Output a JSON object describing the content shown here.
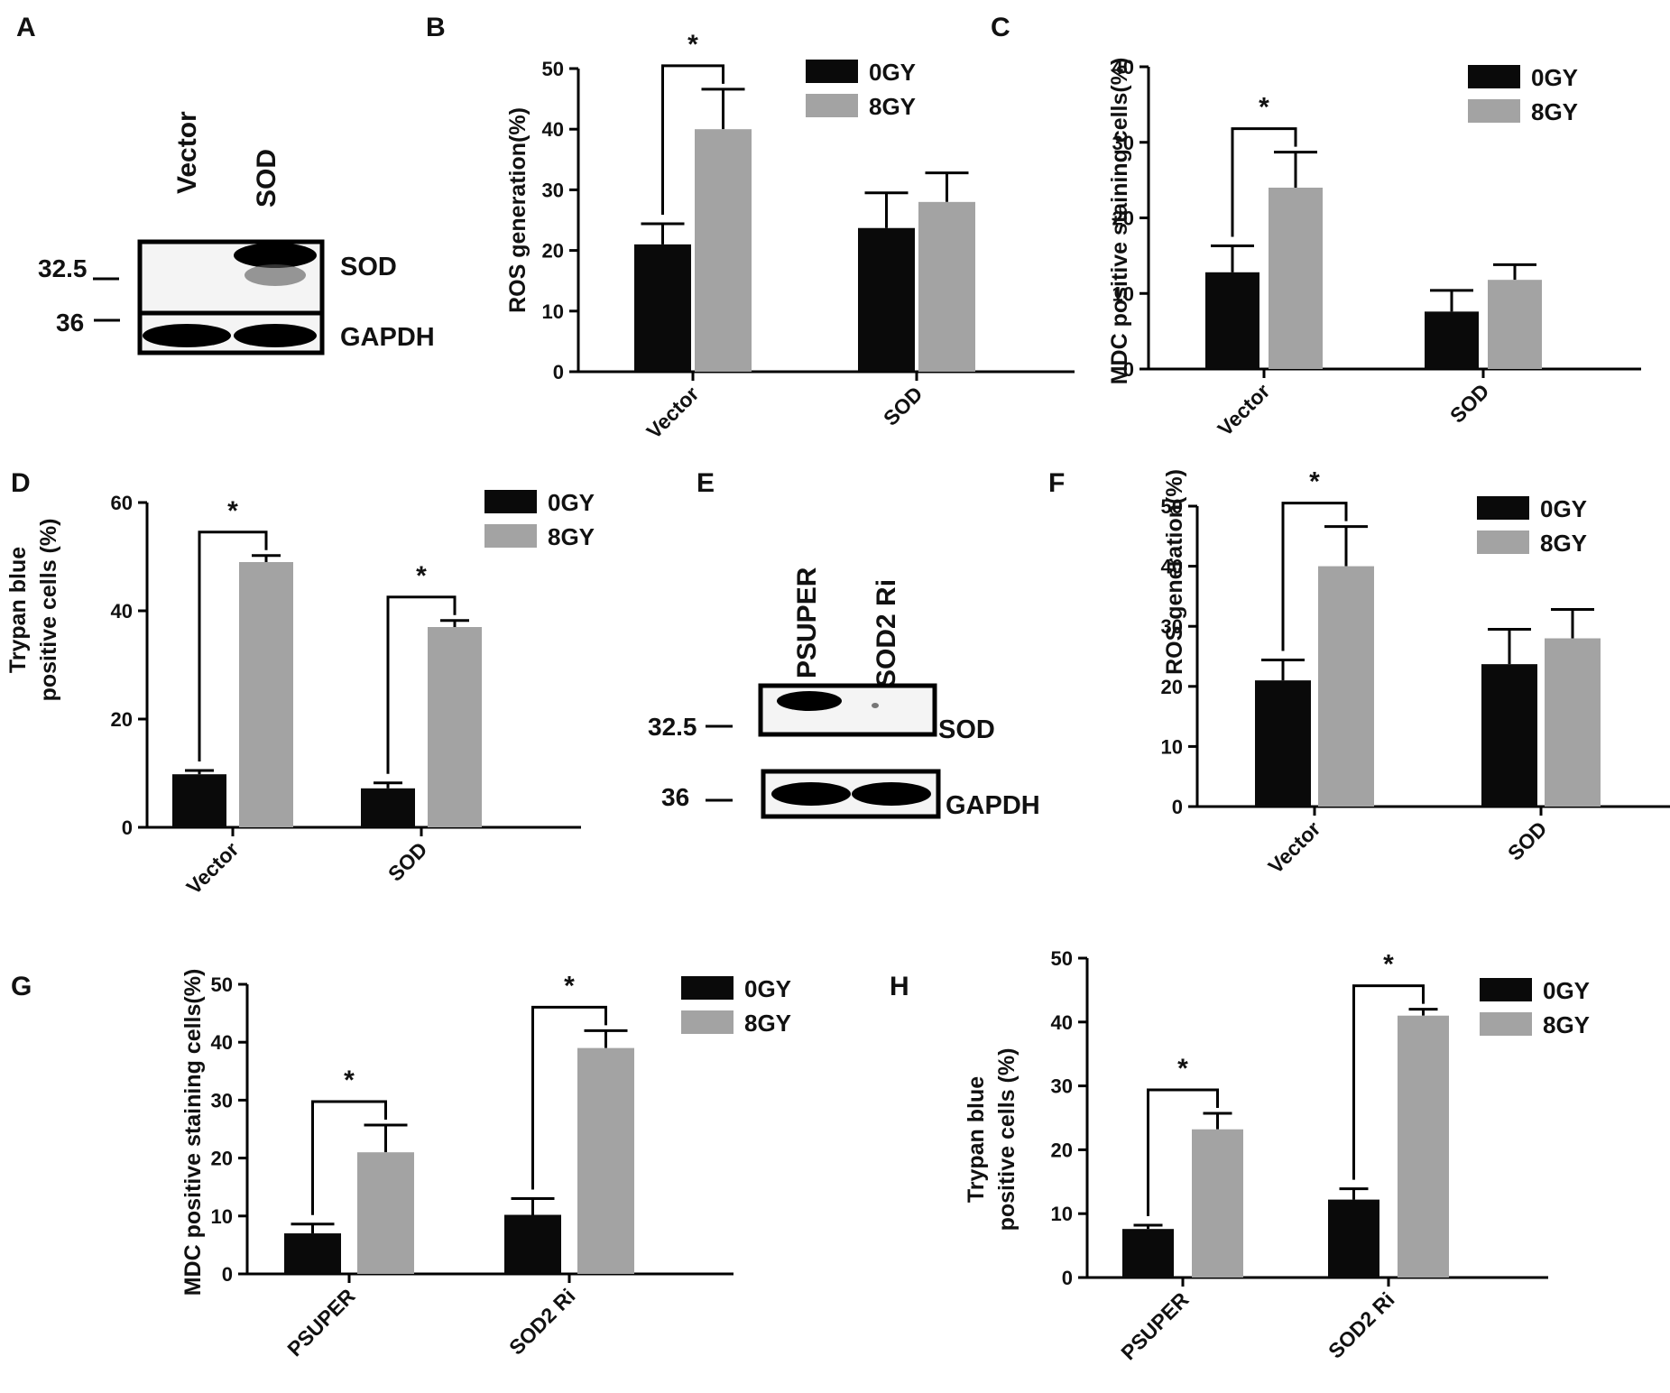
{
  "panel_labels": [
    "A",
    "B",
    "C",
    "D",
    "E",
    "F",
    "G",
    "H"
  ],
  "blots": [
    {
      "panel": "A",
      "lanes": [
        "Vector",
        "SOD"
      ],
      "rows": [
        {
          "marker": "32.5",
          "protein": "SOD"
        },
        {
          "marker": "36",
          "protein": "GAPDH"
        }
      ]
    },
    {
      "panel": "E",
      "lanes": [
        "PSUPER",
        "SOD2 Ri"
      ],
      "rows": [
        {
          "marker": "32.5",
          "protein": "SOD"
        },
        {
          "marker": "36",
          "protein": "GAPDH"
        }
      ]
    }
  ],
  "colors": {
    "0GY": "#0a0a0a",
    "8GY": "#a3a3a3"
  },
  "chart_data": [
    {
      "panel": "B",
      "type": "bar",
      "title": "",
      "ylabel": "ROS generation(%)",
      "ylim": [
        0,
        50
      ],
      "yticks": [
        0,
        10,
        20,
        30,
        40,
        50
      ],
      "categories": [
        "Vector",
        "SOD"
      ],
      "series": [
        {
          "name": "0GY",
          "values": [
            21,
            23.7
          ],
          "errors": [
            3.4,
            5.8
          ]
        },
        {
          "name": "8GY",
          "values": [
            40,
            28
          ],
          "errors": [
            6.6,
            4.8
          ]
        }
      ],
      "significance": [
        {
          "group": "Vector",
          "label": "*"
        }
      ],
      "legend": "top-right"
    },
    {
      "panel": "C",
      "type": "bar",
      "title": "",
      "ylabel": "MDC positive staining cells(%)",
      "ylim": [
        0,
        40
      ],
      "yticks": [
        0,
        10,
        20,
        30,
        40
      ],
      "categories": [
        "Vector",
        "SOD"
      ],
      "series": [
        {
          "name": "0GY",
          "values": [
            12.8,
            7.6
          ],
          "errors": [
            3.5,
            2.8
          ]
        },
        {
          "name": "8GY",
          "values": [
            24,
            11.8
          ],
          "errors": [
            4.7,
            2
          ]
        }
      ],
      "significance": [
        {
          "group": "Vector",
          "label": "*"
        }
      ],
      "legend": "top-right"
    },
    {
      "panel": "D",
      "type": "bar",
      "title": "",
      "ylabel": [
        "Trypan blue",
        "positive cells (%)"
      ],
      "ylim": [
        0,
        60
      ],
      "yticks": [
        0,
        20,
        40,
        60
      ],
      "categories": [
        "Vector",
        "SOD"
      ],
      "series": [
        {
          "name": "0GY",
          "values": [
            9.8,
            7.2
          ],
          "errors": [
            0.7,
            1
          ]
        },
        {
          "name": "8GY",
          "values": [
            49,
            37
          ],
          "errors": [
            1.2,
            1.2
          ]
        }
      ],
      "significance": [
        {
          "group": "Vector",
          "label": "*"
        },
        {
          "group": "SOD",
          "label": "*"
        }
      ],
      "legend": "top-right"
    },
    {
      "panel": "F",
      "type": "bar",
      "title": "",
      "ylabel": "ROS generation(%)",
      "ylim": [
        0,
        50
      ],
      "yticks": [
        0,
        10,
        20,
        30,
        40,
        50
      ],
      "categories": [
        "Vector",
        "SOD"
      ],
      "series": [
        {
          "name": "0GY",
          "values": [
            21,
            23.7
          ],
          "errors": [
            3.4,
            5.8
          ]
        },
        {
          "name": "8GY",
          "values": [
            40,
            28
          ],
          "errors": [
            6.6,
            4.8
          ]
        }
      ],
      "significance": [
        {
          "group": "Vector",
          "label": "*"
        }
      ],
      "legend": "top-right"
    },
    {
      "panel": "G",
      "type": "bar",
      "title": "",
      "ylabel": "MDC positive staining cells(%)",
      "ylim": [
        0,
        50
      ],
      "yticks": [
        0,
        10,
        20,
        30,
        40,
        50
      ],
      "categories": [
        "PSUPER",
        "SOD2 Ri"
      ],
      "series": [
        {
          "name": "0GY",
          "values": [
            7,
            10.2
          ],
          "errors": [
            1.6,
            2.8
          ]
        },
        {
          "name": "8GY",
          "values": [
            21,
            39
          ],
          "errors": [
            4.7,
            3
          ]
        }
      ],
      "significance": [
        {
          "group": "PSUPER",
          "label": "*"
        },
        {
          "group": "SOD2 Ri",
          "label": "*"
        }
      ],
      "legend": "top-right"
    },
    {
      "panel": "H",
      "type": "bar",
      "title": "",
      "ylabel": [
        "Trypan blue",
        "positive cells (%)"
      ],
      "ylim": [
        0,
        50
      ],
      "yticks": [
        0,
        10,
        20,
        30,
        40,
        50
      ],
      "categories": [
        "PSUPER",
        "SOD2 Ri"
      ],
      "series": [
        {
          "name": "0GY",
          "values": [
            7.6,
            12.2
          ],
          "errors": [
            0.6,
            1.7
          ]
        },
        {
          "name": "8GY",
          "values": [
            23.2,
            41
          ],
          "errors": [
            2.5,
            1
          ]
        }
      ],
      "significance": [
        {
          "group": "PSUPER",
          "label": "*"
        },
        {
          "group": "SOD2 Ri",
          "label": "*"
        }
      ],
      "legend": "top-right"
    }
  ]
}
